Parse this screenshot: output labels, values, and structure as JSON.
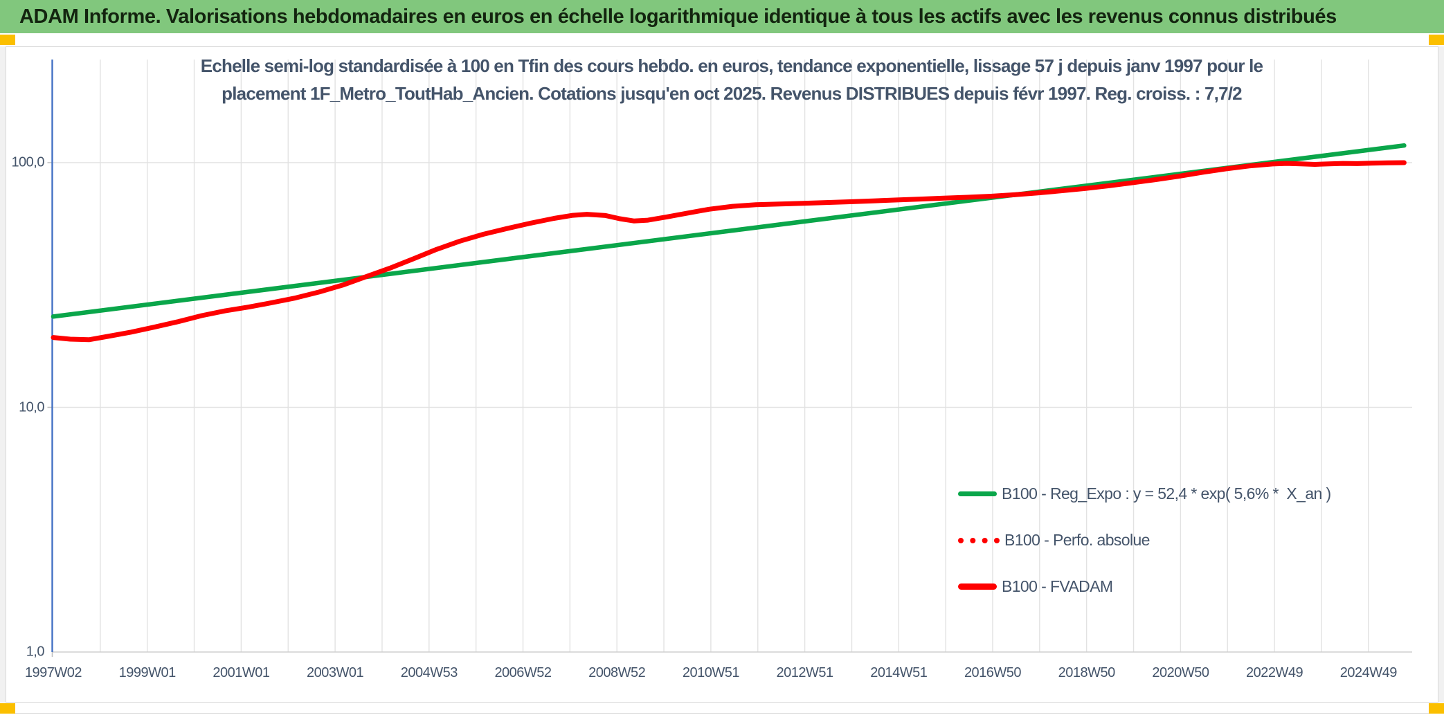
{
  "header": {
    "title": "ADAM Informe. Valorisations hebdomadaires en euros en échelle logarithmique identique à tous les actifs avec les revenus connus distribués",
    "background_color": "#81c77d",
    "corner_marker_color": "#fbbf00"
  },
  "chart": {
    "title_line1": "Echelle semi-log standardisée à 100 en Tfin des cours hebdo. en euros, tendance exponentielle, lissage 57 j depuis janv 1997 pour le",
    "title_line2": "placement 1F_Metro_ToutHab_Ancien. Cotations jusqu'en oct 2025. Revenus DISTRIBUES depuis févr 1997. Reg. croiss. : 7,7/2",
    "text_color": "#44546a",
    "axis_color": "#4472c4",
    "gridline_color": "#e2e2e2",
    "axis_line_color": "#cfcfcf",
    "legend": [
      {
        "label": "B100 - Reg_Expo : y = 52,4 * exp( 5,6% *  X_an )",
        "style": "solid",
        "color": "#0aa64a"
      },
      {
        "label": "B100 - Perfo. absolue",
        "style": "dotted",
        "color": "#fe0000"
      },
      {
        "label": "B100 - FVADAM",
        "style": "solid-thick",
        "color": "#fe0000"
      }
    ]
  },
  "chart_data": {
    "type": "line",
    "title": "Echelle semi-log standardisée à 100 en Tfin des cours hebdo. en euros, tendance exponentielle, lissage 57 j depuis janv 1997 pour le placement 1F_Metro_ToutHab_Ancien. Cotations jusqu'en oct 2025. Revenus DISTRIBUES depuis févr 1997. Reg. croiss. : 7,7/2",
    "y_scale": "log10",
    "ylim": [
      1.0,
      265
    ],
    "x_range_years": [
      1997.04,
      2025.8
    ],
    "grid": {
      "vertical_interval_years": 1,
      "horizontal_at": [
        10,
        100
      ]
    },
    "legend_position": "center-right",
    "y_ticks": [
      {
        "label": "100,0",
        "value": 100
      },
      {
        "label": "10,0",
        "value": 10
      },
      {
        "label": "1,0",
        "value": 1
      }
    ],
    "x_ticks": [
      {
        "label": "1997W02",
        "year": 1997.04
      },
      {
        "label": "1999W01",
        "year": 1999.04
      },
      {
        "label": "2001W01",
        "year": 2001.04
      },
      {
        "label": "2003W01",
        "year": 2003.04
      },
      {
        "label": "2004W53",
        "year": 2005.04
      },
      {
        "label": "2006W52",
        "year": 2007.04
      },
      {
        "label": "2008W52",
        "year": 2009.04
      },
      {
        "label": "2010W51",
        "year": 2011.04
      },
      {
        "label": "2012W51",
        "year": 2013.04
      },
      {
        "label": "2014W51",
        "year": 2015.04
      },
      {
        "label": "2016W50",
        "year": 2017.04
      },
      {
        "label": "2018W50",
        "year": 2019.04
      },
      {
        "label": "2020W50",
        "year": 2021.04
      },
      {
        "label": "2022W49",
        "year": 2023.04
      },
      {
        "label": "2024W49",
        "year": 2025.04
      }
    ],
    "series": [
      {
        "name": "B100 - Reg_Expo : y = 52,4 * exp( 5,6% *  X_an )",
        "color": "#0aa64a",
        "width": 6.5,
        "style": "solid",
        "points": [
          [
            1997.04,
            23.5
          ],
          [
            2025.8,
            117.5
          ]
        ]
      },
      {
        "name": "B100 - Perfo. absolue",
        "color": "#fe0000",
        "style": "dotted",
        "coincides_with": "B100 - FVADAM",
        "points": []
      },
      {
        "name": "B100 - FVADAM",
        "color": "#fe0000",
        "width": 7,
        "style": "solid",
        "points": [
          [
            1997.04,
            19.3
          ],
          [
            1997.4,
            19.0
          ],
          [
            1997.8,
            18.9
          ],
          [
            1998.2,
            19.5
          ],
          [
            1998.7,
            20.3
          ],
          [
            1999.2,
            21.3
          ],
          [
            1999.7,
            22.4
          ],
          [
            2000.2,
            23.7
          ],
          [
            2000.7,
            24.8
          ],
          [
            2001.2,
            25.7
          ],
          [
            2001.7,
            26.8
          ],
          [
            2002.2,
            28.0
          ],
          [
            2002.7,
            29.6
          ],
          [
            2003.2,
            31.6
          ],
          [
            2003.7,
            34.2
          ],
          [
            2004.2,
            37.0
          ],
          [
            2004.7,
            40.4
          ],
          [
            2005.2,
            44.2
          ],
          [
            2005.7,
            47.8
          ],
          [
            2006.2,
            51.0
          ],
          [
            2006.7,
            53.8
          ],
          [
            2007.2,
            56.6
          ],
          [
            2007.7,
            59.2
          ],
          [
            2008.1,
            60.9
          ],
          [
            2008.4,
            61.5
          ],
          [
            2008.8,
            60.8
          ],
          [
            2009.1,
            59.0
          ],
          [
            2009.4,
            57.8
          ],
          [
            2009.7,
            58.2
          ],
          [
            2010.1,
            60.0
          ],
          [
            2010.5,
            62.0
          ],
          [
            2011.0,
            64.5
          ],
          [
            2011.5,
            66.3
          ],
          [
            2012.0,
            67.3
          ],
          [
            2012.5,
            67.8
          ],
          [
            2013.0,
            68.2
          ],
          [
            2013.5,
            68.7
          ],
          [
            2014.0,
            69.2
          ],
          [
            2014.5,
            69.8
          ],
          [
            2015.0,
            70.4
          ],
          [
            2015.5,
            71.0
          ],
          [
            2016.0,
            71.6
          ],
          [
            2016.5,
            72.2
          ],
          [
            2017.0,
            72.9
          ],
          [
            2017.5,
            73.9
          ],
          [
            2018.0,
            75.2
          ],
          [
            2018.5,
            76.7
          ],
          [
            2019.0,
            78.4
          ],
          [
            2019.5,
            80.4
          ],
          [
            2020.0,
            82.7
          ],
          [
            2020.5,
            85.2
          ],
          [
            2021.0,
            88.0
          ],
          [
            2021.5,
            91.2
          ],
          [
            2022.0,
            94.3
          ],
          [
            2022.5,
            96.9
          ],
          [
            2023.0,
            98.8
          ],
          [
            2023.3,
            99.3
          ],
          [
            2023.6,
            98.9
          ],
          [
            2023.9,
            98.4
          ],
          [
            2024.2,
            98.9
          ],
          [
            2024.5,
            99.3
          ],
          [
            2024.8,
            99.1
          ],
          [
            2025.1,
            99.5
          ],
          [
            2025.45,
            99.8
          ],
          [
            2025.8,
            100.0
          ]
        ]
      }
    ]
  }
}
